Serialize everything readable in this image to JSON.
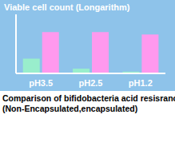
{
  "chart_data": {
    "type": "bar",
    "title": "Viable cell count (Longarithm)",
    "subtitle": [
      "Comparison of bifidobacteria acid resisrance.",
      "(Non-Encapsulated,encapsulated)"
    ],
    "categories": [
      "pH3.5",
      "pH2.5",
      "pH1.2"
    ],
    "series": [
      {
        "name": "Non-Encapsulated",
        "color": "#99eecc",
        "values": [
          25,
          8,
          3
        ]
      },
      {
        "name": "encapsulated",
        "color": "#ff99ee",
        "values": [
          70,
          70,
          66
        ]
      }
    ],
    "ylim": [
      0,
      100
    ],
    "tick_labels": "x",
    "grid": false
  }
}
